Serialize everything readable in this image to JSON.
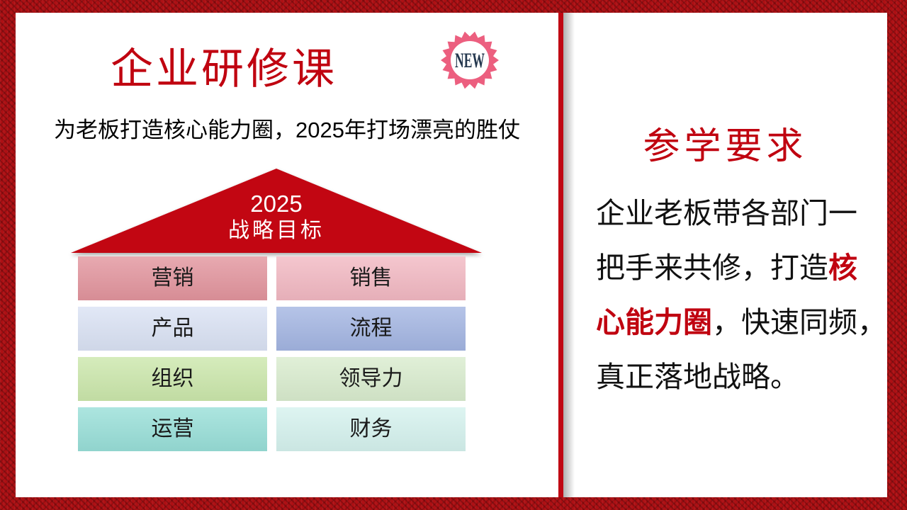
{
  "slide": {
    "left_page": {
      "title": "企业研修课",
      "badge": {
        "label": "NEW",
        "pink": "#ec5f7f",
        "navy": "#24374e"
      },
      "subtitle": "为老板打造核心能力圈，2025年打场漂亮的胜仗",
      "roof": {
        "year": "2025",
        "label": "战略目标",
        "color": "#c20612"
      },
      "grid": [
        {
          "label": "营销",
          "bg": "#e2949d"
        },
        {
          "label": "销售",
          "bg": "#f2b8c2"
        },
        {
          "label": "产品",
          "bg": "#dae2f4"
        },
        {
          "label": "流程",
          "bg": "#a3b5e2"
        },
        {
          "label": "组织",
          "bg": "#cbe7ab"
        },
        {
          "label": "领导力",
          "bg": "#d9ecce"
        },
        {
          "label": "运营",
          "bg": "#98dfd8"
        },
        {
          "label": "财务",
          "bg": "#d5f2ee"
        }
      ]
    },
    "right_page": {
      "heading": "参学要求",
      "paragraph": {
        "line1": "企业老板带各部门一",
        "line2_black": "把手来共修，打造",
        "line2_red": "核",
        "line3_red": "心能力圈",
        "line3_black": "，快速同频，",
        "line4": "真正落地战略。"
      }
    },
    "colors": {
      "accent_red": "#c00310",
      "border_red": "#ae1014",
      "divider_red": "#c00713",
      "panel_white": "#ffffff"
    }
  }
}
